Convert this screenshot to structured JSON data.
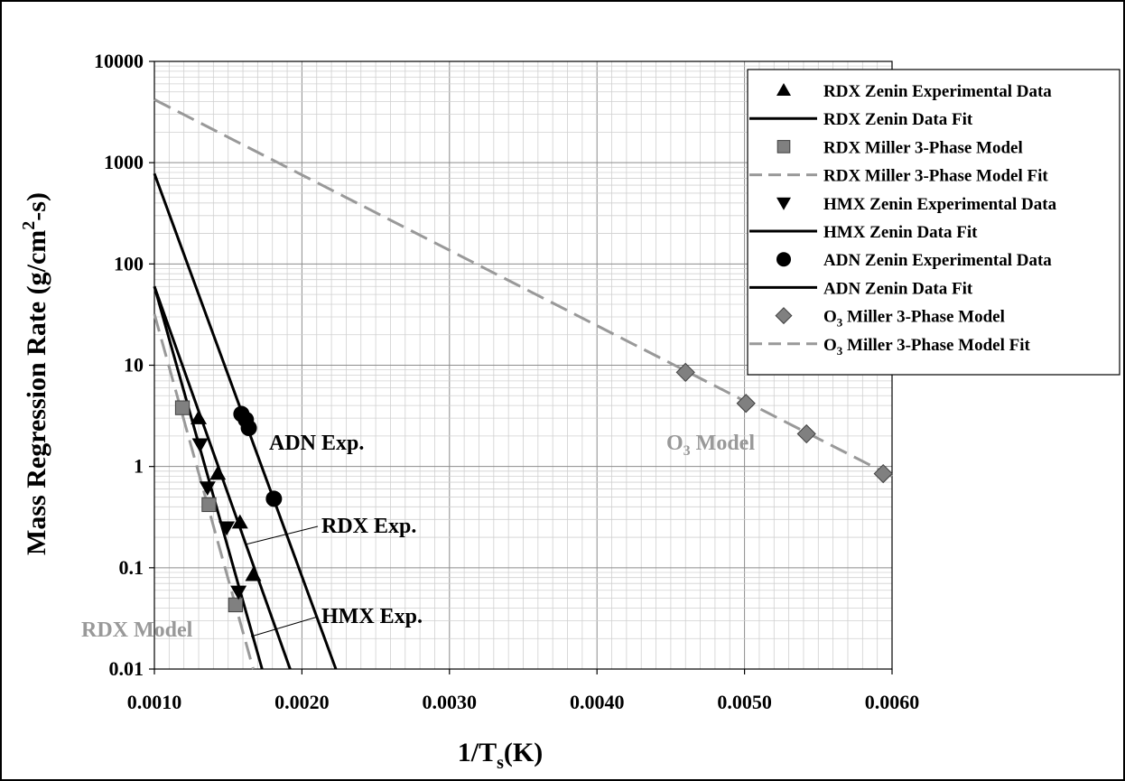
{
  "chart_data": {
    "type": "scatter",
    "xlabel": "1/T",
    "xlabel_sub": "s",
    "xlabel_tail": "(K)",
    "ylabel": "Mass Regression Rate (g/cm",
    "ylabel_sup": "2",
    "ylabel_tail": "-s)",
    "y_scale": "log",
    "xlim": [
      0.001,
      0.006
    ],
    "ylim": [
      0.01,
      10000
    ],
    "x_ticks": [
      "0.0010",
      "0.0020",
      "0.0030",
      "0.0040",
      "0.0050",
      "0.0060"
    ],
    "x_tick_values": [
      0.001,
      0.002,
      0.003,
      0.004,
      0.005,
      0.006
    ],
    "y_ticks": [
      "0.01",
      "0.1",
      "1",
      "10",
      "100",
      "1000",
      "10000"
    ],
    "y_tick_values": [
      0.01,
      0.1,
      1,
      10,
      100,
      1000,
      10000
    ],
    "grid": true,
    "legend_position": "top-right",
    "legend": [
      {
        "label": "RDX Zenin Experimental Data",
        "marker": "triangle-up",
        "color": "#000000"
      },
      {
        "label": "RDX Zenin Data Fit",
        "line": "solid",
        "color": "#000000"
      },
      {
        "label": "RDX Miller 3-Phase Model",
        "marker": "square",
        "color": "#808080"
      },
      {
        "label": "RDX Miller 3-Phase Model Fit",
        "line": "dashed",
        "color": "#999999"
      },
      {
        "label": "HMX Zenin Experimental Data",
        "marker": "triangle-down",
        "color": "#000000"
      },
      {
        "label": "HMX Zenin Data Fit",
        "line": "solid",
        "color": "#000000"
      },
      {
        "label": "ADN Zenin Experimental Data",
        "marker": "circle",
        "color": "#000000"
      },
      {
        "label": "ADN Zenin Data Fit",
        "line": "solid",
        "color": "#000000"
      },
      {
        "label": "O",
        "label_sub": "3",
        "label_tail": " Miller 3-Phase Model",
        "marker": "diamond",
        "color": "#808080"
      },
      {
        "label": "O",
        "label_sub": "3",
        "label_tail": " Miller 3-Phase Model Fit",
        "line": "dashed",
        "color": "#999999"
      }
    ],
    "series": [
      {
        "name": "RDX Zenin Experimental Data",
        "kind": "points",
        "marker": "triangle-up",
        "color": "#000000",
        "x": [
          0.0013,
          0.00143,
          0.00158,
          0.00167
        ],
        "y": [
          3.0,
          0.85,
          0.28,
          0.085
        ]
      },
      {
        "name": "RDX Zenin Data Fit",
        "kind": "line",
        "dash": false,
        "color": "#000000",
        "x": [
          0.001,
          0.00192
        ],
        "y": [
          60,
          0.01
        ]
      },
      {
        "name": "RDX Miller 3-Phase Model",
        "kind": "points",
        "marker": "square",
        "color": "#808080",
        "x": [
          0.00119,
          0.00137,
          0.00155
        ],
        "y": [
          3.8,
          0.42,
          0.043
        ]
      },
      {
        "name": "RDX Miller 3-Phase Model Fit",
        "kind": "line",
        "dash": true,
        "color": "#999999",
        "x": [
          0.001,
          0.00167
        ],
        "y": [
          32,
          0.01
        ]
      },
      {
        "name": "HMX Zenin Experimental Data",
        "kind": "points",
        "marker": "triangle-down",
        "color": "#000000",
        "x": [
          0.00131,
          0.00136,
          0.00149,
          0.00157
        ],
        "y": [
          1.65,
          0.62,
          0.25,
          0.058
        ]
      },
      {
        "name": "HMX Zenin Data Fit",
        "kind": "line",
        "dash": false,
        "color": "#000000",
        "x": [
          0.001,
          0.00173
        ],
        "y": [
          60,
          0.01
        ]
      },
      {
        "name": "ADN Zenin Experimental Data",
        "kind": "points",
        "marker": "circle",
        "color": "#000000",
        "x": [
          0.00159,
          0.00162,
          0.00164,
          0.00181
        ],
        "y": [
          3.3,
          2.9,
          2.4,
          0.48
        ]
      },
      {
        "name": "ADN Zenin Data Fit",
        "kind": "line",
        "dash": false,
        "color": "#000000",
        "x": [
          0.001,
          0.00223
        ],
        "y": [
          780,
          0.01
        ]
      },
      {
        "name": "O3 Miller 3-Phase Model",
        "kind": "points",
        "marker": "diamond",
        "color": "#808080",
        "x": [
          0.0046,
          0.00501,
          0.00542,
          0.00594
        ],
        "y": [
          8.5,
          4.2,
          2.1,
          0.85
        ]
      },
      {
        "name": "O3 Miller 3-Phase Model Fit",
        "kind": "line",
        "dash": true,
        "color": "#999999",
        "x": [
          0.001,
          0.006
        ],
        "y": [
          4200,
          0.8
        ]
      }
    ],
    "annotations": [
      {
        "text": "ADN Exp.",
        "color": "#000000"
      },
      {
        "text": "RDX Exp.",
        "color": "#000000"
      },
      {
        "text": "HMX Exp.",
        "color": "#000000"
      },
      {
        "text": "RDX Model",
        "color": "#999999"
      },
      {
        "text": "O",
        "sub": "3",
        "tail": " Model",
        "color": "#999999"
      }
    ]
  }
}
